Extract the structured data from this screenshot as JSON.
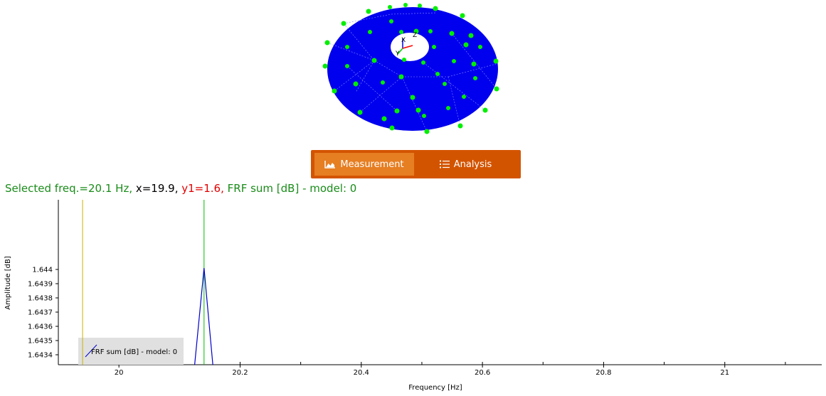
{
  "mode_bar": {
    "measurement_label": "Measurement",
    "analysis_label": "Analysis"
  },
  "status": {
    "freq_text": "Selected freq.=20.1 Hz,",
    "x_text": " x=19.9,",
    "y_text": " y1=1.6,",
    "series_text": " FRF sum [dB] - model: 0",
    "freq_color": "#1a8c1a",
    "x_color": "#000000",
    "y_color": "#e00000",
    "series_color": "#1a8c1a"
  },
  "mesh": {
    "colors": {
      "surface": "#0000ee",
      "nodes": "#00ee00",
      "axis_x": "#ff0000",
      "axis_y": "#00cc00",
      "axis_z": "#0000ff"
    },
    "axis_labels": {
      "x": "X",
      "y": "Y",
      "z": "Z"
    }
  },
  "chart_data": {
    "type": "line",
    "xlabel": "Frequency [Hz]",
    "ylabel": "Amplitude [dB]",
    "xlim": [
      19.9,
      21.16
    ],
    "ylim": [
      1.64333,
      1.64449
    ],
    "x_ticks": [
      "20",
      "20.2",
      "20.4",
      "20.6",
      "20.8",
      "21"
    ],
    "x_tick_values": [
      20,
      20.2,
      20.4,
      20.6,
      20.8,
      21
    ],
    "y_ticks": [
      "1.644",
      "1.6439",
      "1.6438",
      "1.6437",
      "1.6436",
      "1.6435",
      "1.6434"
    ],
    "y_tick_values": [
      1.644,
      1.6439,
      1.6438,
      1.6437,
      1.6436,
      1.6435,
      1.6434
    ],
    "series": [
      {
        "name": "FRF sum [dB] - model: 0",
        "color": "#0000cc",
        "x": [
          20.125,
          20.1405,
          20.155
        ],
        "y": [
          1.64333,
          1.64401,
          1.64333
        ]
      }
    ],
    "cursors": [
      {
        "x": 19.94,
        "color": "#c8b400"
      },
      {
        "x": 20.1405,
        "color": "#00bb00"
      }
    ],
    "legend_position": "bottom-left"
  }
}
